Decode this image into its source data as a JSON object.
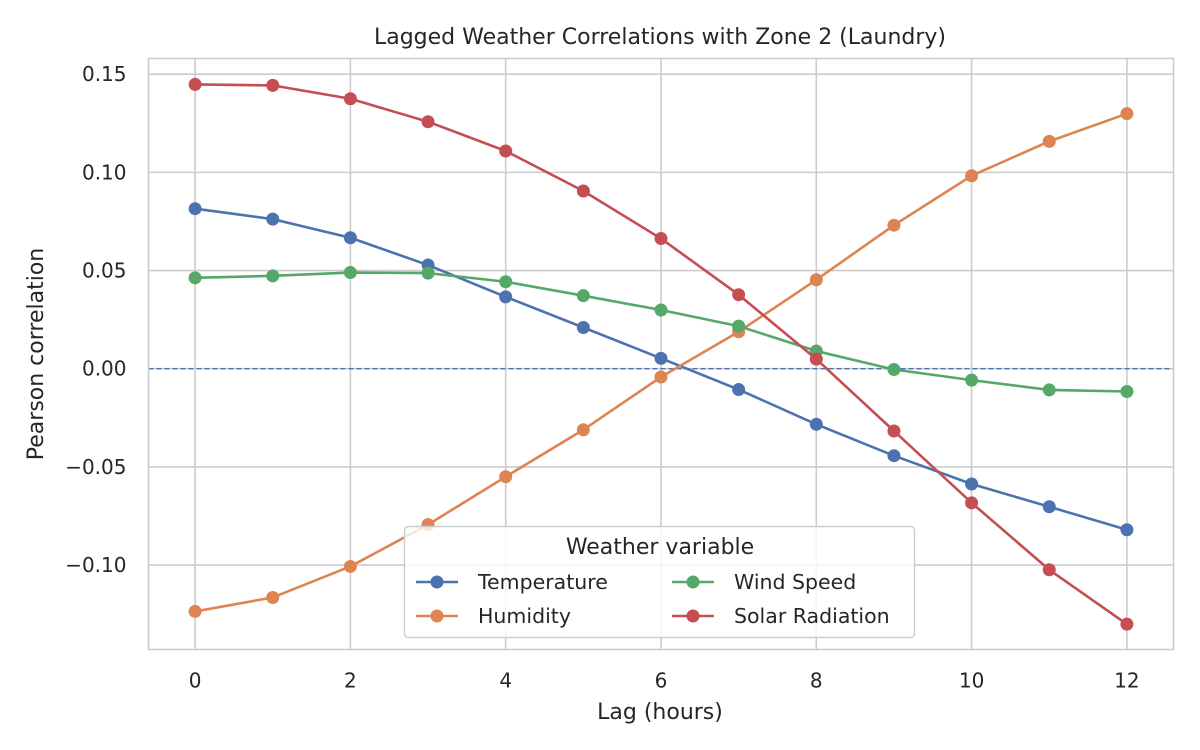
{
  "chart_data": {
    "type": "line",
    "title": "Lagged Weather Correlations with Zone 2 (Laundry)",
    "xlabel": "Lag (hours)",
    "ylabel": "Pearson correlation",
    "x": [
      0,
      1,
      2,
      3,
      4,
      5,
      6,
      7,
      8,
      9,
      10,
      11,
      12
    ],
    "xlim": [
      -0.6,
      12.6
    ],
    "ylim": [
      -0.143,
      0.158
    ],
    "xticks": [
      0,
      2,
      4,
      6,
      8,
      10,
      12
    ],
    "xtick_labels": [
      "0",
      "2",
      "4",
      "6",
      "8",
      "10",
      "12"
    ],
    "yticks": [
      -0.1,
      -0.05,
      0.0,
      0.05,
      0.1,
      0.15
    ],
    "ytick_labels": [
      "−0.10",
      "−0.05",
      "0.00",
      "0.05",
      "0.10",
      "0.15"
    ],
    "grid": true,
    "reference_line": {
      "y": 0.0,
      "style": "dashed"
    },
    "legend": {
      "title": "Weather variable",
      "position": "lower-center",
      "columns": 2
    },
    "series": [
      {
        "name": "Temperature",
        "color": "#4c72b0",
        "values": [
          0.0815,
          0.0762,
          0.0667,
          0.0528,
          0.0366,
          0.021,
          0.0053,
          -0.0106,
          -0.0283,
          -0.0443,
          -0.0587,
          -0.0703,
          -0.082
        ]
      },
      {
        "name": "Humidity",
        "color": "#dd8452",
        "values": [
          -0.1236,
          -0.1165,
          -0.1007,
          -0.0794,
          -0.055,
          -0.0311,
          -0.0042,
          0.0188,
          0.0453,
          0.0731,
          0.0983,
          0.1158,
          0.1299
        ]
      },
      {
        "name": "Wind Speed",
        "color": "#55a868",
        "values": [
          0.0463,
          0.0473,
          0.049,
          0.0487,
          0.0443,
          0.0372,
          0.0299,
          0.0217,
          0.009,
          -0.0004,
          -0.0058,
          -0.0108,
          -0.0116
        ]
      },
      {
        "name": "Solar Radiation",
        "color": "#c44e52",
        "values": [
          0.1448,
          0.1443,
          0.1375,
          0.1258,
          0.1109,
          0.0905,
          0.0663,
          0.0377,
          0.0049,
          -0.0317,
          -0.0683,
          -0.1024,
          -0.1301
        ]
      }
    ]
  }
}
